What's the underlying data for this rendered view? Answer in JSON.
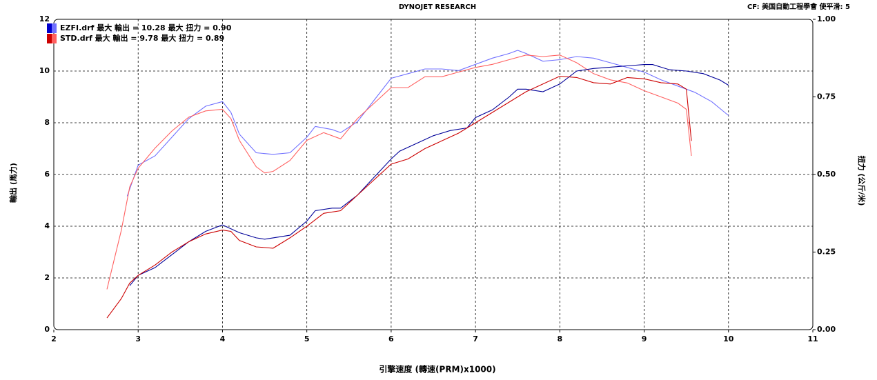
{
  "chart_data": {
    "type": "line",
    "title": "DYNOJET RESEARCH",
    "subtitle": "CF: 美国自動工程學會  使平滑: 5",
    "x_label": "引擎速度 (轉速(PRM)x1000)",
    "y_label": "輸出 (馬力)",
    "y2_label": "扭力 (公斤/米)",
    "legend": [
      "EZFI.drf 最大 輸出 = 10.28    最大 扭力 = 0.90",
      "STD.drf 最大 輸出 = 9.78    最大 扭力 = 0.89"
    ],
    "legend_colors": [
      [
        "#0000cc",
        "#7070ff"
      ],
      [
        "#cc0000",
        "#ff6060"
      ]
    ],
    "legend_position": "top-left",
    "grid": true,
    "xlim": [
      2,
      11
    ],
    "xticks": [
      2,
      3,
      4,
      5,
      6,
      7,
      8,
      9,
      10,
      11
    ],
    "ylim": [
      0,
      12
    ],
    "yticks": [
      0,
      2,
      4,
      6,
      8,
      10,
      12
    ],
    "y2lim": [
      0,
      1
    ],
    "y2ticks": [
      {
        "value": 0,
        "label": "0.00"
      },
      0.25,
      {
        "value": 0.5,
        "label": "0.50"
      },
      0.75,
      {
        "value": 1,
        "label": "1.00"
      }
    ],
    "series": [
      {
        "color": "#7070ff",
        "axis": "y2",
        "x": [
          2.87,
          3.0,
          3.2,
          3.4,
          3.6,
          3.8,
          4.0,
          4.1,
          4.2,
          4.4,
          4.6,
          4.8,
          5.0,
          5.1,
          5.3,
          5.4,
          5.6,
          5.8,
          6.0,
          6.2,
          6.4,
          6.6,
          6.8,
          7.0,
          7.2,
          7.4,
          7.5,
          7.6,
          7.8,
          8.0,
          8.2,
          8.4,
          8.6,
          8.8,
          9.0,
          9.2,
          9.4,
          9.6,
          9.8,
          10.0
        ],
        "values": [
          0.43,
          0.53,
          0.56,
          0.62,
          0.68,
          0.72,
          0.735,
          0.7,
          0.63,
          0.57,
          0.565,
          0.57,
          0.62,
          0.655,
          0.645,
          0.635,
          0.67,
          0.74,
          0.81,
          0.825,
          0.84,
          0.84,
          0.835,
          0.855,
          0.875,
          0.89,
          0.9,
          0.89,
          0.865,
          0.87,
          0.88,
          0.875,
          0.86,
          0.845,
          0.83,
          0.805,
          0.785,
          0.765,
          0.735,
          0.69
        ]
      },
      {
        "color": "#ff6060",
        "axis": "y2",
        "x": [
          2.63,
          2.8,
          2.9,
          3.0,
          3.2,
          3.4,
          3.6,
          3.8,
          4.0,
          4.1,
          4.2,
          4.4,
          4.5,
          4.6,
          4.8,
          5.0,
          5.2,
          5.4,
          5.6,
          5.8,
          6.0,
          6.2,
          6.4,
          6.6,
          6.8,
          7.0,
          7.2,
          7.4,
          7.6,
          7.8,
          8.0,
          8.2,
          8.4,
          8.6,
          8.8,
          9.0,
          9.2,
          9.4,
          9.5,
          9.56
        ],
        "values": [
          0.13,
          0.32,
          0.46,
          0.52,
          0.585,
          0.64,
          0.685,
          0.705,
          0.71,
          0.68,
          0.61,
          0.525,
          0.505,
          0.51,
          0.545,
          0.61,
          0.635,
          0.615,
          0.68,
          0.73,
          0.78,
          0.78,
          0.815,
          0.815,
          0.83,
          0.845,
          0.855,
          0.87,
          0.885,
          0.88,
          0.885,
          0.86,
          0.825,
          0.805,
          0.795,
          0.77,
          0.75,
          0.73,
          0.71,
          0.56
        ]
      },
      {
        "color": "#000099",
        "x": [
          2.9,
          3.0,
          3.2,
          3.4,
          3.6,
          3.8,
          4.0,
          4.2,
          4.4,
          4.5,
          4.6,
          4.8,
          5.0,
          5.1,
          5.3,
          5.4,
          5.6,
          5.8,
          6.0,
          6.1,
          6.3,
          6.5,
          6.7,
          6.9,
          7.0,
          7.2,
          7.4,
          7.5,
          7.6,
          7.8,
          8.0,
          8.2,
          8.4,
          8.6,
          8.8,
          9.0,
          9.1,
          9.2,
          9.3,
          9.5,
          9.7,
          9.9,
          10.0
        ],
        "values": [
          1.7,
          2.1,
          2.4,
          2.9,
          3.4,
          3.8,
          4.05,
          3.75,
          3.55,
          3.5,
          3.55,
          3.65,
          4.2,
          4.6,
          4.7,
          4.7,
          5.2,
          5.9,
          6.6,
          6.9,
          7.2,
          7.5,
          7.7,
          7.8,
          8.2,
          8.5,
          9.0,
          9.3,
          9.3,
          9.2,
          9.5,
          10.0,
          10.1,
          10.15,
          10.2,
          10.25,
          10.25,
          10.15,
          10.05,
          10.0,
          9.9,
          9.65,
          9.45
        ]
      },
      {
        "color": "#cc0000",
        "x": [
          2.63,
          2.8,
          2.9,
          3.0,
          3.2,
          3.4,
          3.6,
          3.8,
          4.0,
          4.1,
          4.2,
          4.4,
          4.6,
          4.8,
          5.0,
          5.2,
          5.4,
          5.6,
          5.8,
          6.0,
          6.2,
          6.4,
          6.6,
          6.8,
          7.0,
          7.2,
          7.4,
          7.6,
          7.8,
          8.0,
          8.2,
          8.4,
          8.6,
          8.8,
          9.0,
          9.2,
          9.4,
          9.5,
          9.56
        ],
        "values": [
          0.45,
          1.2,
          1.8,
          2.1,
          2.5,
          3.0,
          3.4,
          3.7,
          3.85,
          3.8,
          3.45,
          3.2,
          3.15,
          3.55,
          4.0,
          4.5,
          4.6,
          5.2,
          5.8,
          6.4,
          6.6,
          7.0,
          7.3,
          7.6,
          8.0,
          8.4,
          8.8,
          9.2,
          9.5,
          9.8,
          9.75,
          9.55,
          9.5,
          9.75,
          9.7,
          9.55,
          9.5,
          9.3,
          7.3
        ]
      }
    ]
  }
}
